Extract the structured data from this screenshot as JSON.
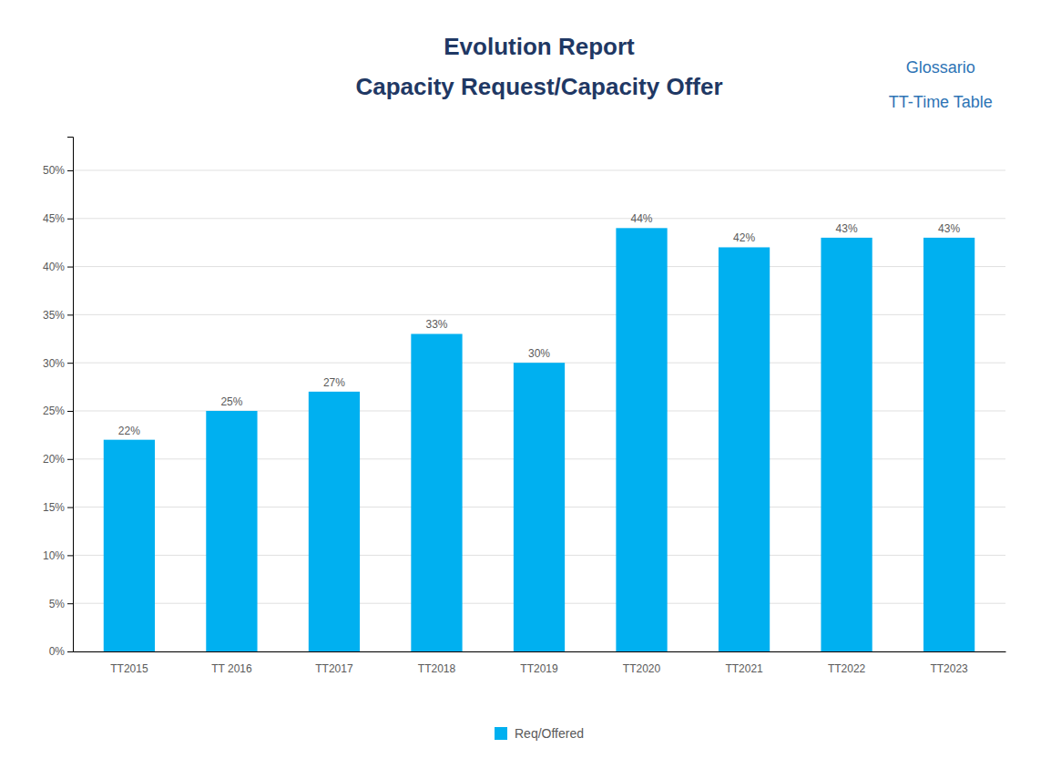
{
  "chart_data": {
    "type": "bar",
    "title": "Evolution Report",
    "subtitle": "Capacity Request/Capacity Offer",
    "annotations": [
      "Glossario",
      "TT-Time Table"
    ],
    "categories": [
      "TT2015",
      "TT 2016",
      "TT2017",
      "TT2018",
      "TT2019",
      "TT2020",
      "TT2021",
      "TT2022",
      "TT2023"
    ],
    "series": [
      {
        "name": "Req/Offered",
        "color": "#00B0F0",
        "values": [
          0.22,
          0.25,
          0.27,
          0.33,
          0.3,
          0.44,
          0.42,
          0.43,
          0.43
        ],
        "value_labels": [
          "22%",
          "25%",
          "27%",
          "33%",
          "30%",
          "44%",
          "42%",
          "43%",
          "43%"
        ]
      }
    ],
    "ylim": [
      0,
      0.535
    ],
    "yticks": [
      {
        "value": 0.0,
        "label": "0%"
      },
      {
        "value": 0.05,
        "label": "5%"
      },
      {
        "value": 0.1,
        "label": "10%"
      },
      {
        "value": 0.15,
        "label": "15%"
      },
      {
        "value": 0.2,
        "label": "20%"
      },
      {
        "value": 0.25,
        "label": "25%"
      },
      {
        "value": 0.3,
        "label": "30%"
      },
      {
        "value": 0.35,
        "label": "35%"
      },
      {
        "value": 0.4,
        "label": "40%"
      },
      {
        "value": 0.45,
        "label": "45%"
      },
      {
        "value": 0.5,
        "label": "50%"
      }
    ],
    "grid": true,
    "data_labels": true,
    "legend": "bottom"
  }
}
